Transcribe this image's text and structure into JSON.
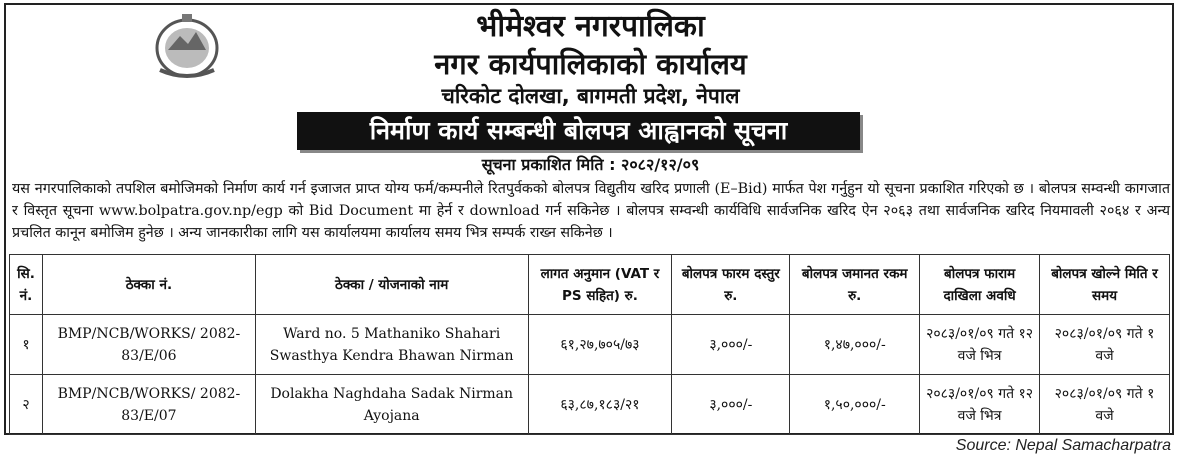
{
  "header": {
    "line1": "भीमेश्वर नगरपालिका",
    "line2": "नगर कार्यपालिकाको कार्यालय",
    "line3": "चरिकोट दोलखा, बागमती प्रदेश, नेपाल",
    "emblem_icon": "nepal-government-emblem-icon"
  },
  "notice": {
    "title": "निर्माण कार्य सम्बन्धी बोलपत्र आह्वानको सूचना",
    "published_date": "सूचना प्रकाशित मिति : २०८२/१२/०९",
    "body": "यस नगरपालिकाको तपशिल बमोजिमको निर्माण कार्य गर्न इजाजत प्राप्त योग्य फर्म/कम्पनीले रितपुर्वकको बोलपत्र विद्युतीय खरिद प्रणाली (E–Bid) मार्फत पेश गर्नुहुन यो सूचना प्रकाशित गरिएको छ । बोलपत्र सम्वन्धी कागजात र विस्तृत सूचना www.bolpatra.gov.np/egp को Bid Document मा हेर्न र download गर्न सकिनेछ । बोलपत्र सम्वन्धी कार्यविधि सार्वजनिक खरिद ऐन २०६३ तथा सार्वजनिक खरिद नियमावली २०६४ र अन्य प्रचलित कानून बमोजिम हुनेछ । अन्य जानकारीका लागि यस कार्यालयमा कार्यालय समय भित्र सम्पर्क राख्न सकिनेछ ।"
  },
  "table": {
    "headers": [
      "सि. नं.",
      "ठेक्का नं.",
      "ठेक्का / योजनाको नाम",
      "लागत अनुमान (VAT र PS सहित) रु.",
      "बोलपत्र फारम दस्तुर रु.",
      "बोलपत्र जमानत रकम रु.",
      "बोलपत्र फाराम दाखिला अवधि",
      "बोलपत्र खोल्ने मिति र समय"
    ],
    "rows": [
      [
        "१",
        "BMP/NCB/WORKS/ 2082-83/E/06",
        "Ward no. 5 Mathaniko Shahari Swasthya Kendra Bhawan Nirman",
        "६१,२७,७०५/७३",
        "३,०००/-",
        "१,४७,०००/-",
        "२०८३/०१/०९ गते १२ वजे भित्र",
        "२०८३/०१/०९ गते १ वजे"
      ],
      [
        "२",
        "BMP/NCB/WORKS/ 2082-83/E/07",
        "Dolakha Naghdaha Sadak Nirman Ayojana",
        "६३,८७,१८३/२१",
        "३,०००/-",
        "१,५०,०००/-",
        "२०८३/०१/०९ गते १२ वजे भित्र",
        "२०८३/०१/०९ गते १ वजे"
      ]
    ]
  },
  "source": "Source: Nepal Samacharpatra"
}
